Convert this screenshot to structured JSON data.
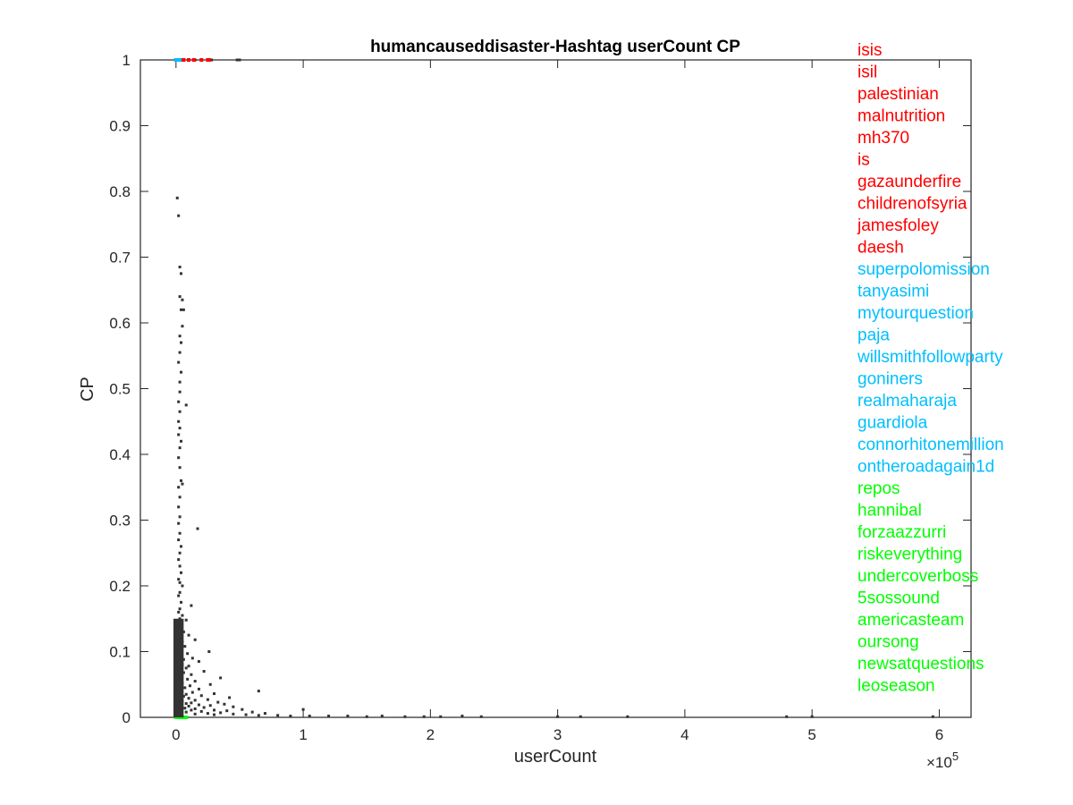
{
  "chart_data": {
    "type": "scatter",
    "title": "humancauseddisaster-Hashtag userCount CP",
    "xlabel": "userCount",
    "ylabel": "CP",
    "x_multiplier": "×10",
    "x_multiplier_exp": "5",
    "xlim": [
      -0.28,
      6.25
    ],
    "ylim": [
      0,
      1
    ],
    "xticks": [
      0,
      1,
      2,
      3,
      4,
      5,
      6
    ],
    "xtick_labels": [
      "0",
      "1",
      "2",
      "3",
      "4",
      "5",
      "6"
    ],
    "yticks": [
      0,
      0.1,
      0.2,
      0.3,
      0.4,
      0.5,
      0.6,
      0.7,
      0.8,
      0.9,
      1
    ],
    "ytick_labels": [
      "0",
      "0.1",
      "0.2",
      "0.3",
      "0.4",
      "0.5",
      "0.6",
      "0.7",
      "0.8",
      "0.9",
      "1"
    ],
    "grid": false,
    "colors": {
      "points": "#333333",
      "top": "#ff0000",
      "random": "#00bfff",
      "bottom": "#00ff00"
    },
    "series": [
      {
        "color": "#333333",
        "points": [
          [
            0.01,
            0.79
          ],
          [
            0.02,
            0.763
          ],
          [
            0.03,
            0.685
          ],
          [
            0.04,
            0.675
          ],
          [
            0.03,
            0.64
          ],
          [
            0.05,
            0.635
          ],
          [
            0.06,
            0.62
          ],
          [
            0.04,
            0.62
          ],
          [
            0.05,
            0.595
          ],
          [
            0.03,
            0.58
          ],
          [
            0.04,
            0.57
          ],
          [
            0.03,
            0.555
          ],
          [
            0.02,
            0.54
          ],
          [
            0.04,
            0.525
          ],
          [
            0.03,
            0.51
          ],
          [
            0.03,
            0.495
          ],
          [
            0.02,
            0.48
          ],
          [
            0.08,
            0.475
          ],
          [
            0.03,
            0.465
          ],
          [
            0.02,
            0.45
          ],
          [
            0.03,
            0.44
          ],
          [
            0.02,
            0.43
          ],
          [
            0.04,
            0.42
          ],
          [
            0.03,
            0.41
          ],
          [
            0.02,
            0.395
          ],
          [
            0.03,
            0.38
          ],
          [
            0.04,
            0.36
          ],
          [
            0.05,
            0.355
          ],
          [
            0.02,
            0.35
          ],
          [
            0.03,
            0.335
          ],
          [
            0.02,
            0.32
          ],
          [
            0.03,
            0.305
          ],
          [
            0.02,
            0.295
          ],
          [
            0.17,
            0.287
          ],
          [
            0.03,
            0.28
          ],
          [
            0.02,
            0.27
          ],
          [
            0.04,
            0.26
          ],
          [
            0.03,
            0.25
          ],
          [
            0.02,
            0.24
          ],
          [
            0.03,
            0.23
          ],
          [
            0.04,
            0.22
          ],
          [
            0.02,
            0.21
          ],
          [
            0.03,
            0.205
          ],
          [
            0.05,
            0.2
          ],
          [
            0.03,
            0.19
          ],
          [
            0.02,
            0.185
          ],
          [
            0.04,
            0.175
          ],
          [
            0.12,
            0.17
          ],
          [
            0.03,
            0.165
          ],
          [
            0.02,
            0.16
          ],
          [
            0.05,
            0.155
          ],
          [
            0.03,
            0.15
          ],
          [
            0.08,
            0.148
          ],
          [
            0.02,
            0.14
          ],
          [
            0.04,
            0.135
          ],
          [
            0.06,
            0.13
          ],
          [
            0.1,
            0.125
          ],
          [
            0.03,
            0.12
          ],
          [
            0.15,
            0.118
          ],
          [
            0.05,
            0.115
          ],
          [
            0.02,
            0.11
          ],
          [
            0.07,
            0.108
          ],
          [
            0.26,
            0.1
          ],
          [
            0.04,
            0.1
          ],
          [
            0.09,
            0.097
          ],
          [
            0.03,
            0.095
          ],
          [
            0.13,
            0.09
          ],
          [
            0.06,
            0.088
          ],
          [
            0.18,
            0.085
          ],
          [
            0.02,
            0.082
          ],
          [
            0.05,
            0.08
          ],
          [
            0.1,
            0.078
          ],
          [
            0.08,
            0.075
          ],
          [
            0.03,
            0.072
          ],
          [
            0.22,
            0.07
          ],
          [
            0.06,
            0.068
          ],
          [
            0.12,
            0.065
          ],
          [
            0.04,
            0.062
          ],
          [
            0.35,
            0.06
          ],
          [
            0.09,
            0.058
          ],
          [
            0.15,
            0.055
          ],
          [
            0.05,
            0.052
          ],
          [
            0.27,
            0.05
          ],
          [
            0.11,
            0.048
          ],
          [
            0.07,
            0.045
          ],
          [
            0.18,
            0.043
          ],
          [
            0.65,
            0.04
          ],
          [
            0.04,
            0.04
          ],
          [
            0.13,
            0.038
          ],
          [
            0.3,
            0.036
          ],
          [
            0.08,
            0.035
          ],
          [
            0.2,
            0.033
          ],
          [
            0.06,
            0.032
          ],
          [
            0.42,
            0.03
          ],
          [
            0.1,
            0.029
          ],
          [
            0.25,
            0.027
          ],
          [
            0.15,
            0.026
          ],
          [
            0.05,
            0.025
          ],
          [
            0.33,
            0.023
          ],
          [
            0.12,
            0.022
          ],
          [
            0.08,
            0.021
          ],
          [
            0.38,
            0.02
          ],
          [
            0.18,
            0.019
          ],
          [
            0.27,
            0.018
          ],
          [
            0.1,
            0.017
          ],
          [
            0.45,
            0.016
          ],
          [
            0.22,
            0.015
          ],
          [
            0.07,
            0.014
          ],
          [
            0.15,
            0.013
          ],
          [
            0.52,
            0.012
          ],
          [
            0.3,
            0.011
          ],
          [
            0.12,
            0.011
          ],
          [
            0.4,
            0.01
          ],
          [
            0.2,
            0.009
          ],
          [
            0.6,
            0.008
          ],
          [
            0.08,
            0.008
          ],
          [
            0.35,
            0.007
          ],
          [
            0.25,
            0.006
          ],
          [
            0.7,
            0.006
          ],
          [
            0.15,
            0.005
          ],
          [
            0.45,
            0.005
          ],
          [
            0.55,
            0.004
          ],
          [
            0.3,
            0.004
          ],
          [
            0.8,
            0.003
          ],
          [
            0.65,
            0.003
          ],
          [
            1.0,
            0.012
          ],
          [
            0.9,
            0.002
          ],
          [
            1.05,
            0.002
          ],
          [
            1.2,
            0.002
          ],
          [
            1.35,
            0.002
          ],
          [
            1.5,
            0.001
          ],
          [
            1.62,
            0.002
          ],
          [
            1.8,
            0.001
          ],
          [
            1.95,
            0.001
          ],
          [
            2.08,
            0.001
          ],
          [
            2.25,
            0.002
          ],
          [
            2.4,
            0.001
          ],
          [
            3.0,
            0.001
          ],
          [
            3.18,
            0.001
          ],
          [
            3.55,
            0.001
          ],
          [
            4.8,
            0.001
          ],
          [
            5.0,
            0.001
          ],
          [
            5.95,
            0.001
          ],
          [
            0.5,
            1.0
          ],
          [
            0.48,
            1.0
          ],
          [
            0.28,
            1.0
          ],
          [
            0.15,
            1.0
          ]
        ]
      },
      {
        "color": "#ff0000",
        "points": [
          [
            0.0,
            1.0
          ],
          [
            0.02,
            1.0
          ],
          [
            0.04,
            1.0
          ],
          [
            0.06,
            1.0
          ],
          [
            0.1,
            1.0
          ],
          [
            0.14,
            1.0
          ],
          [
            0.2,
            1.0
          ],
          [
            0.25,
            1.0
          ],
          [
            0.26,
            1.0
          ]
        ]
      },
      {
        "color": "#00bfff",
        "points": [
          [
            0.0,
            1.0
          ],
          [
            0.01,
            1.0
          ],
          [
            0.03,
            1.0
          ]
        ]
      },
      {
        "color": "#00ff00",
        "points": [
          [
            0.0,
            0.0
          ],
          [
            0.02,
            0.0
          ],
          [
            0.04,
            0.0
          ],
          [
            0.06,
            0.0
          ],
          [
            0.08,
            0.0
          ],
          [
            0.03,
            0.0
          ]
        ]
      }
    ],
    "annotations": [
      {
        "text": "isis",
        "color": "#ff0000"
      },
      {
        "text": "isil",
        "color": "#ff0000"
      },
      {
        "text": "palestinian",
        "color": "#ff0000"
      },
      {
        "text": "malnutrition",
        "color": "#ff0000"
      },
      {
        "text": "mh370",
        "color": "#ff0000"
      },
      {
        "text": "is",
        "color": "#ff0000"
      },
      {
        "text": "gazaunderfire",
        "color": "#ff0000"
      },
      {
        "text": "childrenofsyria",
        "color": "#ff0000"
      },
      {
        "text": "jamesfoley",
        "color": "#ff0000"
      },
      {
        "text": "daesh",
        "color": "#ff0000"
      },
      {
        "text": "superpolomission",
        "color": "#00bfff"
      },
      {
        "text": "tanyasimi",
        "color": "#00bfff"
      },
      {
        "text": "mytourquestion",
        "color": "#00bfff"
      },
      {
        "text": "paja",
        "color": "#00bfff"
      },
      {
        "text": "willsmithfollowparty",
        "color": "#00bfff"
      },
      {
        "text": "goniners",
        "color": "#00bfff"
      },
      {
        "text": "realmaharaja",
        "color": "#00bfff"
      },
      {
        "text": "guardiola",
        "color": "#00bfff"
      },
      {
        "text": "connorhitonemillion",
        "color": "#00bfff"
      },
      {
        "text": "ontheroadagain1d",
        "color": "#00bfff"
      },
      {
        "text": "repos",
        "color": "#00ff00"
      },
      {
        "text": "hannibal",
        "color": "#00ff00"
      },
      {
        "text": "forzaazzurri",
        "color": "#00ff00"
      },
      {
        "text": "riskeverything",
        "color": "#00ff00"
      },
      {
        "text": "undercoverboss",
        "color": "#00ff00"
      },
      {
        "text": "5sossound",
        "color": "#00ff00"
      },
      {
        "text": "americasteam",
        "color": "#00ff00"
      },
      {
        "text": "oursong",
        "color": "#00ff00"
      },
      {
        "text": "newsatquestions",
        "color": "#00ff00"
      },
      {
        "text": "leoseason",
        "color": "#00ff00"
      }
    ]
  }
}
